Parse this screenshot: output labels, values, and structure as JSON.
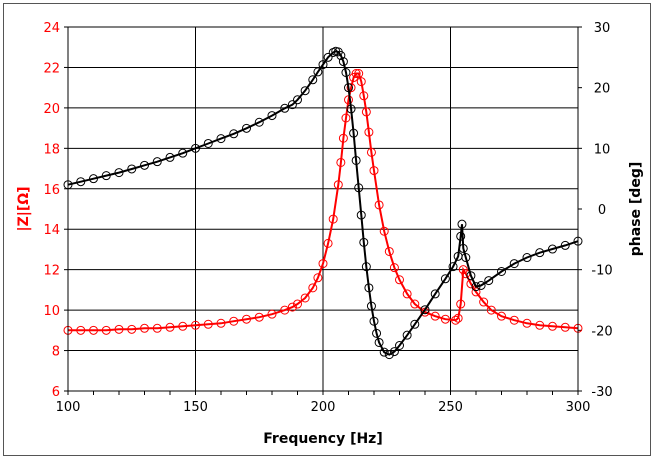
{
  "chart_data": {
    "type": "line",
    "title": "",
    "xlabel": "Frequency [Hz]",
    "ylabel": "|Z|[Ω]",
    "y2label": "phase [deg]",
    "xlim": [
      100,
      300
    ],
    "ylim": [
      6,
      24
    ],
    "y2lim": [
      -30,
      30
    ],
    "xticks": [
      100,
      150,
      200,
      250,
      300
    ],
    "yticks": [
      6,
      8,
      10,
      12,
      14,
      16,
      18,
      20,
      22,
      24
    ],
    "y2ticks": [
      -30,
      -20,
      -10,
      0,
      10,
      20,
      30
    ],
    "grid": true,
    "legend": "none",
    "colors": {
      "impedance": "#ff0000",
      "phase": "#000000",
      "left_axis_labels": "#ff0000"
    },
    "series": [
      {
        "axis": "left",
        "color": "#ff0000",
        "marker": "open-circle",
        "x": [
          100,
          105,
          110,
          115,
          120,
          125,
          130,
          135,
          140,
          145,
          150,
          155,
          160,
          165,
          170,
          175,
          180,
          185,
          188,
          190,
          193,
          196,
          198,
          200,
          202,
          204,
          206,
          207,
          208,
          209,
          210,
          211,
          212,
          213,
          214,
          215,
          216,
          217,
          218,
          219,
          220,
          222,
          224,
          226,
          228,
          230,
          233,
          236,
          240,
          244,
          248,
          252,
          253,
          254,
          255,
          256,
          258,
          260,
          263,
          266,
          270,
          275,
          280,
          285,
          290,
          295,
          300
        ],
        "y": [
          9.0,
          9.0,
          9.0,
          9.0,
          9.05,
          9.05,
          9.1,
          9.1,
          9.15,
          9.2,
          9.25,
          9.3,
          9.35,
          9.45,
          9.55,
          9.65,
          9.8,
          10.0,
          10.15,
          10.3,
          10.6,
          11.1,
          11.6,
          12.3,
          13.3,
          14.5,
          16.2,
          17.3,
          18.5,
          19.5,
          20.4,
          21.0,
          21.5,
          21.7,
          21.7,
          21.3,
          20.6,
          19.8,
          18.8,
          17.8,
          16.9,
          15.2,
          13.9,
          12.9,
          12.1,
          11.5,
          10.8,
          10.3,
          9.9,
          9.7,
          9.55,
          9.5,
          9.6,
          10.3,
          12.0,
          11.8,
          11.3,
          10.9,
          10.4,
          10.0,
          9.7,
          9.5,
          9.35,
          9.25,
          9.2,
          9.15,
          9.1
        ]
      },
      {
        "axis": "right",
        "color": "#000000",
        "marker": "open-circle",
        "x": [
          100,
          105,
          110,
          115,
          120,
          125,
          130,
          135,
          140,
          145,
          150,
          155,
          160,
          165,
          170,
          175,
          180,
          185,
          188,
          190,
          193,
          196,
          198,
          200,
          202,
          204,
          205,
          206,
          207,
          208,
          209,
          210,
          211,
          212,
          213,
          214,
          215,
          216,
          217,
          218,
          219,
          220,
          221,
          222,
          224,
          226,
          228,
          230,
          233,
          236,
          240,
          244,
          248,
          251,
          253,
          254,
          254.5,
          255,
          256,
          258,
          260,
          262,
          265,
          270,
          275,
          280,
          285,
          290,
          295,
          300
        ],
        "y": [
          4.0,
          4.5,
          5.0,
          5.5,
          6.0,
          6.6,
          7.2,
          7.8,
          8.5,
          9.2,
          10.0,
          10.8,
          11.6,
          12.4,
          13.3,
          14.3,
          15.4,
          16.6,
          17.2,
          18.0,
          19.5,
          21.3,
          22.6,
          23.8,
          25.0,
          25.8,
          26.0,
          25.9,
          25.3,
          24.3,
          22.5,
          20.0,
          16.5,
          12.5,
          8.0,
          3.5,
          -1.0,
          -5.5,
          -9.5,
          -13.0,
          -16.0,
          -18.5,
          -20.5,
          -22.0,
          -23.6,
          -24.0,
          -23.5,
          -22.5,
          -20.8,
          -19.0,
          -16.6,
          -14.0,
          -11.5,
          -9.5,
          -7.8,
          -4.5,
          -2.5,
          -6.5,
          -8.0,
          -11.0,
          -12.8,
          -12.6,
          -11.8,
          -10.3,
          -9.0,
          -8.0,
          -7.2,
          -6.6,
          -6.0,
          -5.3
        ]
      }
    ]
  }
}
